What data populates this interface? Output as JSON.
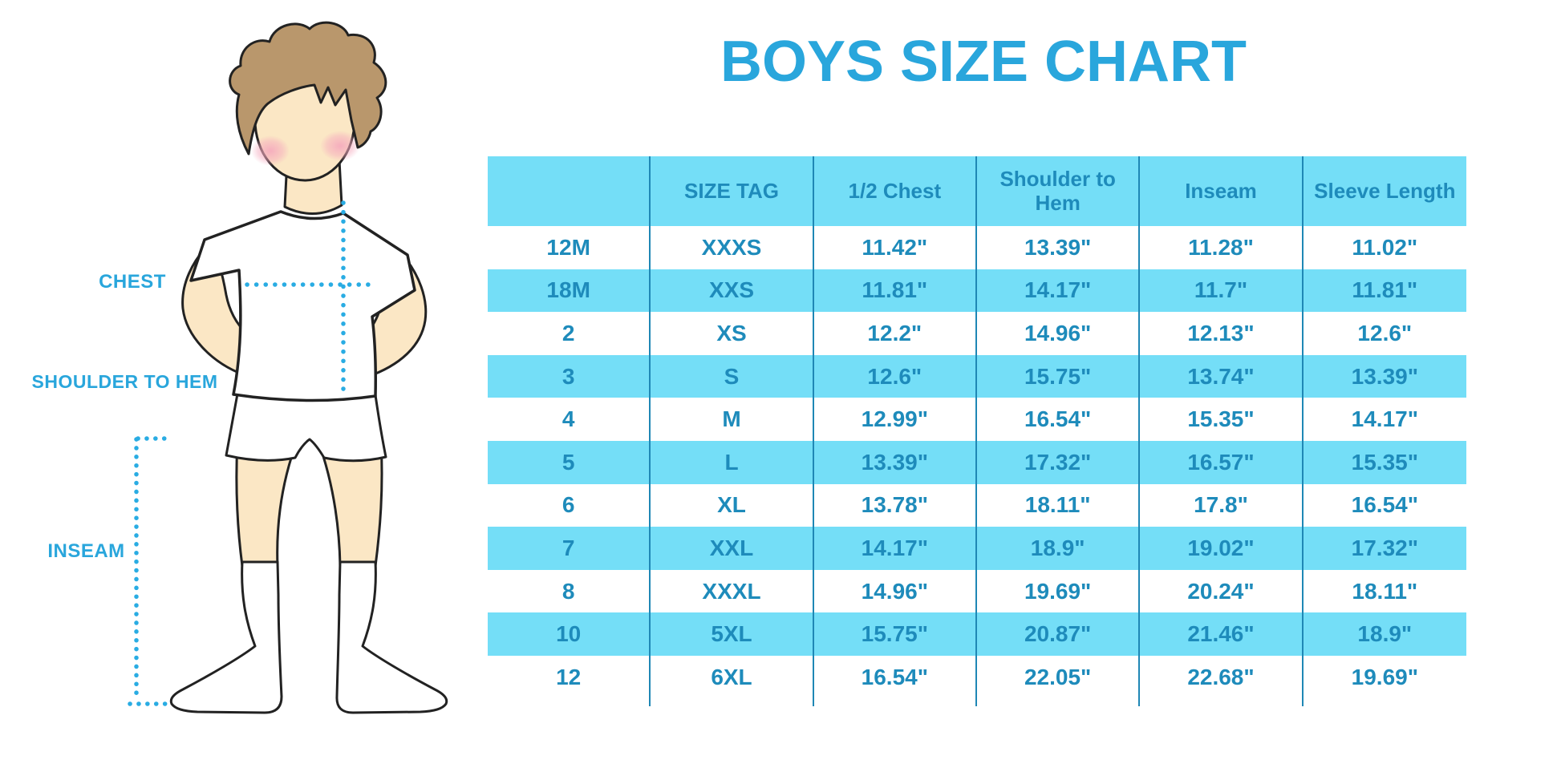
{
  "title": "BOYS SIZE CHART",
  "diagram": {
    "labels": {
      "chest": "CHEST",
      "shoulder_to_hem": "SHOULDER TO HEM",
      "inseam": "INSEAM"
    }
  },
  "chart_data": {
    "type": "table",
    "title": "BOYS SIZE CHART",
    "columns": [
      "",
      "SIZE TAG",
      "1/2 Chest",
      "Shoulder to Hem",
      "Inseam",
      "Sleeve Length"
    ],
    "rows": [
      [
        "12M",
        "XXXS",
        "11.42\"",
        "13.39\"",
        "11.28\"",
        "11.02\""
      ],
      [
        "18M",
        "XXS",
        "11.81\"",
        "14.17\"",
        "11.7\"",
        "11.81\""
      ],
      [
        "2",
        "XS",
        "12.2\"",
        "14.96\"",
        "12.13\"",
        "12.6\""
      ],
      [
        "3",
        "S",
        "12.6\"",
        "15.75\"",
        "13.74\"",
        "13.39\""
      ],
      [
        "4",
        "M",
        "12.99\"",
        "16.54\"",
        "15.35\"",
        "14.17\""
      ],
      [
        "5",
        "L",
        "13.39\"",
        "17.32\"",
        "16.57\"",
        "15.35\""
      ],
      [
        "6",
        "XL",
        "13.78\"",
        "18.11\"",
        "17.8\"",
        "16.54\""
      ],
      [
        "7",
        "XXL",
        "14.17\"",
        "18.9\"",
        "19.02\"",
        "17.32\""
      ],
      [
        "8",
        "XXXL",
        "14.96\"",
        "19.69\"",
        "20.24\"",
        "18.11\""
      ],
      [
        "10",
        "5XL",
        "15.75\"",
        "20.87\"",
        "21.46\"",
        "18.9\""
      ],
      [
        "12",
        "6XL",
        "16.54\"",
        "22.05\"",
        "22.68\"",
        "19.69\""
      ]
    ],
    "layout": {
      "striping": "alternating white / cyan starting white",
      "grid": "vertical column dividers only"
    }
  },
  "colors": {
    "accent_title": "#29A6DC",
    "table_fill": "#74DEF7",
    "table_text": "#1E8BBB",
    "divider": "#1F87B5",
    "dotted_line": "#29ACE3",
    "skin": "#FBE7C5",
    "hair": "#B9976C"
  }
}
